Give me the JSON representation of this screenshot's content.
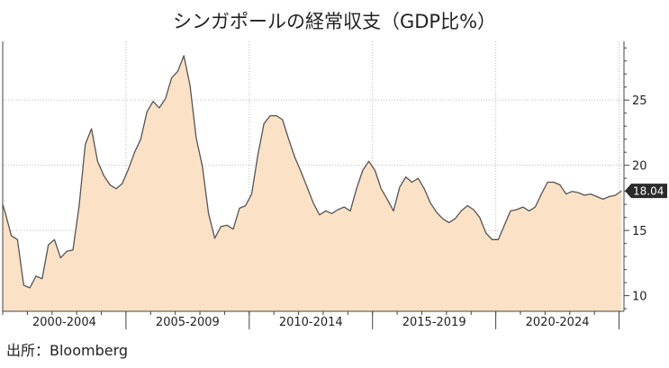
{
  "chart_data": {
    "type": "area",
    "title": "シンガポールの経常収支（GDP比%）",
    "xlabel": "",
    "ylabel": "",
    "x_range": [
      2000,
      2025.2
    ],
    "ylim": [
      8.8,
      29.5
    ],
    "y_ticks": [
      10,
      15,
      20,
      25
    ],
    "y_tick_labels": [
      "10",
      "15",
      "20",
      "25"
    ],
    "y_axis_side": "right",
    "categories": [
      {
        "label": "2000-2004",
        "from": 2000,
        "to": 2005
      },
      {
        "label": "2005-2009",
        "from": 2005,
        "to": 2010
      },
      {
        "label": "2010-2014",
        "from": 2010,
        "to": 2015
      },
      {
        "label": "2015-2019",
        "from": 2015,
        "to": 2020
      },
      {
        "label": "2020-2024",
        "from": 2020,
        "to": 2025
      }
    ],
    "grid": true,
    "fill_color": "#fbe1c6",
    "line_color": "#555555",
    "last_value_label": "18.04",
    "series": [
      {
        "x": [
          1999.9,
          2000.1,
          2000.35,
          2000.6,
          2000.85,
          2001.1,
          2001.35,
          2001.6,
          2001.85,
          2002.1,
          2002.35,
          2002.6,
          2002.85,
          2003.1,
          2003.35,
          2003.6,
          2003.85,
          2004.1,
          2004.35,
          2004.6,
          2004.85,
          2005.1,
          2005.35,
          2005.6,
          2005.85,
          2006.1,
          2006.35,
          2006.6,
          2006.85,
          2007.1,
          2007.35,
          2007.6,
          2007.85,
          2008.1,
          2008.35,
          2008.6,
          2008.85,
          2009.1,
          2009.35,
          2009.6,
          2009.85,
          2010.1,
          2010.35,
          2010.6,
          2010.85,
          2011.1,
          2011.35,
          2011.6,
          2011.85,
          2012.1,
          2012.35,
          2012.6,
          2012.85,
          2013.1,
          2013.35,
          2013.6,
          2013.85,
          2014.1,
          2014.35,
          2014.6,
          2014.85,
          2015.1,
          2015.35,
          2015.6,
          2015.85,
          2016.1,
          2016.35,
          2016.6,
          2016.85,
          2017.1,
          2017.35,
          2017.6,
          2017.85,
          2018.1,
          2018.35,
          2018.6,
          2018.85,
          2019.1,
          2019.35,
          2019.6,
          2019.85,
          2020.1,
          2020.35,
          2020.6,
          2020.85,
          2021.1,
          2021.35,
          2021.6,
          2021.85,
          2022.1,
          2022.35,
          2022.6,
          2022.85,
          2023.1,
          2023.35,
          2023.6,
          2023.85,
          2024.1,
          2024.35,
          2024.6,
          2024.85,
          2025.1
        ],
        "values": [
          17.0,
          16.4,
          14.6,
          14.3,
          10.8,
          10.6,
          11.5,
          11.3,
          13.9,
          14.3,
          12.9,
          13.4,
          13.5,
          16.9,
          21.6,
          22.8,
          20.3,
          19.2,
          18.5,
          18.2,
          18.6,
          19.7,
          21.0,
          22.0,
          24.1,
          24.9,
          24.4,
          25.1,
          26.7,
          27.2,
          28.4,
          26.1,
          22.1,
          19.9,
          16.3,
          14.4,
          15.3,
          15.4,
          15.1,
          16.7,
          16.9,
          17.8,
          20.8,
          23.2,
          23.8,
          23.8,
          23.5,
          22.0,
          20.6,
          19.5,
          18.3,
          17.1,
          16.2,
          16.5,
          16.3,
          16.6,
          16.8,
          16.5,
          18.2,
          19.6,
          20.3,
          19.6,
          18.2,
          17.4,
          16.5,
          18.3,
          19.1,
          18.7,
          19.0,
          18.2,
          17.1,
          16.4,
          15.9,
          15.6,
          15.9,
          16.5,
          16.9,
          16.6,
          16.0,
          14.8,
          14.3,
          14.3,
          15.4,
          16.5,
          16.6,
          16.8,
          16.5,
          16.8,
          17.8,
          18.7,
          18.7,
          18.5,
          17.8,
          18.0,
          17.9,
          17.7,
          17.8,
          17.6,
          17.4,
          17.6,
          17.7,
          18.04
        ]
      }
    ]
  },
  "source": "出所：Bloomberg"
}
